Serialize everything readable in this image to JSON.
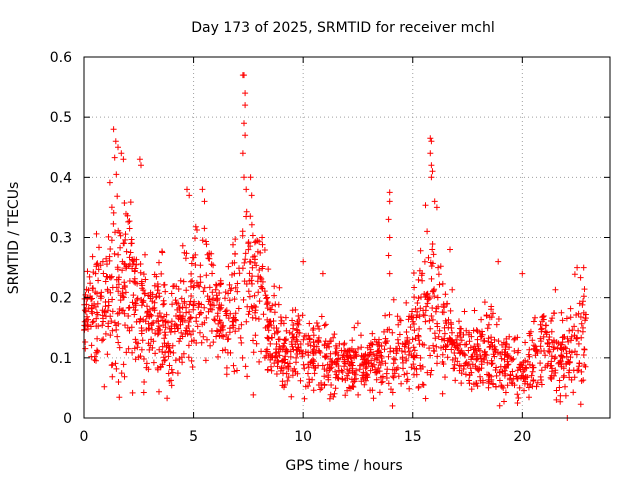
{
  "chart_data": {
    "type": "scatter",
    "title": "Day 173 of 2025, SRMTID for receiver mchl",
    "xlabel": "GPS time / hours",
    "ylabel": "SRMTID / TECUs",
    "xlim": [
      0,
      24
    ],
    "ylim": [
      0,
      0.6
    ],
    "x_ticks": [
      0,
      5,
      10,
      15,
      20
    ],
    "x_tick_labels": [
      "0",
      "5",
      "10",
      "15",
      "20"
    ],
    "y_ticks": [
      0,
      0.1,
      0.2,
      0.3,
      0.4,
      0.5,
      0.6
    ],
    "y_tick_labels": [
      "0",
      "0.1",
      "0.2",
      "0.3",
      "0.4",
      "0.5",
      "0.6"
    ],
    "grid": true,
    "marker": "plus",
    "color": "#ff0000",
    "series": [
      {
        "name": "SRMTID",
        "profile_x": [
          0.0,
          0.5,
          1.0,
          1.5,
          2.0,
          2.5,
          3.0,
          3.5,
          4.0,
          4.5,
          5.0,
          5.5,
          6.0,
          6.5,
          7.0,
          7.5,
          8.0,
          8.5,
          9.0,
          9.5,
          10.0,
          10.5,
          11.0,
          11.5,
          12.0,
          12.5,
          13.0,
          13.5,
          14.0,
          14.5,
          15.0,
          15.5,
          16.0,
          16.5,
          17.0,
          17.5,
          18.0,
          18.5,
          19.0,
          19.5,
          20.0,
          20.5,
          21.0,
          21.5,
          22.0,
          22.5,
          22.9
        ],
        "profile_median": [
          0.16,
          0.17,
          0.19,
          0.24,
          0.22,
          0.18,
          0.16,
          0.18,
          0.14,
          0.17,
          0.2,
          0.21,
          0.17,
          0.16,
          0.2,
          0.23,
          0.2,
          0.14,
          0.12,
          0.11,
          0.1,
          0.11,
          0.1,
          0.09,
          0.085,
          0.09,
          0.09,
          0.095,
          0.1,
          0.1,
          0.14,
          0.17,
          0.18,
          0.15,
          0.11,
          0.11,
          0.1,
          0.11,
          0.09,
          0.09,
          0.07,
          0.1,
          0.12,
          0.11,
          0.1,
          0.13,
          0.14
        ],
        "profile_spread": [
          0.04,
          0.05,
          0.06,
          0.09,
          0.08,
          0.05,
          0.05,
          0.05,
          0.04,
          0.04,
          0.06,
          0.06,
          0.04,
          0.04,
          0.06,
          0.07,
          0.06,
          0.04,
          0.035,
          0.03,
          0.03,
          0.035,
          0.03,
          0.025,
          0.025,
          0.025,
          0.025,
          0.03,
          0.04,
          0.03,
          0.04,
          0.07,
          0.07,
          0.04,
          0.03,
          0.03,
          0.03,
          0.035,
          0.03,
          0.03,
          0.03,
          0.035,
          0.04,
          0.035,
          0.03,
          0.05,
          0.04
        ],
        "spikes": [
          {
            "x": 1.35,
            "y": 0.48
          },
          {
            "x": 1.45,
            "y": 0.46
          },
          {
            "x": 1.55,
            "y": 0.45
          },
          {
            "x": 1.7,
            "y": 0.44
          },
          {
            "x": 1.8,
            "y": 0.43
          },
          {
            "x": 2.55,
            "y": 0.43
          },
          {
            "x": 2.6,
            "y": 0.42
          },
          {
            "x": 4.7,
            "y": 0.38
          },
          {
            "x": 4.8,
            "y": 0.37
          },
          {
            "x": 5.4,
            "y": 0.38
          },
          {
            "x": 5.5,
            "y": 0.36
          },
          {
            "x": 7.25,
            "y": 0.57
          },
          {
            "x": 7.3,
            "y": 0.57
          },
          {
            "x": 7.35,
            "y": 0.54
          },
          {
            "x": 7.35,
            "y": 0.52
          },
          {
            "x": 7.3,
            "y": 0.49
          },
          {
            "x": 7.35,
            "y": 0.47
          },
          {
            "x": 7.25,
            "y": 0.44
          },
          {
            "x": 7.3,
            "y": 0.4
          },
          {
            "x": 7.4,
            "y": 0.38
          },
          {
            "x": 7.6,
            "y": 0.4
          },
          {
            "x": 7.65,
            "y": 0.37
          },
          {
            "x": 13.95,
            "y": 0.375
          },
          {
            "x": 13.95,
            "y": 0.36
          },
          {
            "x": 13.9,
            "y": 0.33
          },
          {
            "x": 13.95,
            "y": 0.3
          },
          {
            "x": 13.9,
            "y": 0.27
          },
          {
            "x": 13.95,
            "y": 0.24
          },
          {
            "x": 15.8,
            "y": 0.465
          },
          {
            "x": 15.85,
            "y": 0.46
          },
          {
            "x": 15.8,
            "y": 0.44
          },
          {
            "x": 15.85,
            "y": 0.42
          },
          {
            "x": 15.9,
            "y": 0.41
          },
          {
            "x": 15.85,
            "y": 0.4
          },
          {
            "x": 16.0,
            "y": 0.36
          },
          {
            "x": 16.1,
            "y": 0.35
          },
          {
            "x": 16.7,
            "y": 0.28
          },
          {
            "x": 10.0,
            "y": 0.26
          },
          {
            "x": 10.9,
            "y": 0.24
          },
          {
            "x": 18.9,
            "y": 0.26
          },
          {
            "x": 20.0,
            "y": 0.24
          },
          {
            "x": 22.5,
            "y": 0.25
          },
          {
            "x": 22.8,
            "y": 0.25
          },
          {
            "x": 22.05,
            "y": 0.0
          }
        ]
      }
    ]
  }
}
